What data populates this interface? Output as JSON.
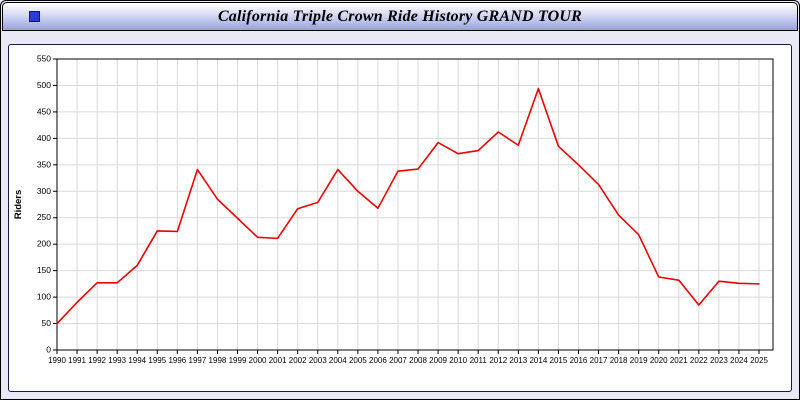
{
  "header": {
    "title": "California Triple Crown Ride History GRAND TOUR",
    "icon": "blue-square-icon"
  },
  "colors": {
    "page_background": "#e9e9f6",
    "titlebar_gradient_top": "#ffffff",
    "titlebar_gradient_bottom": "#97a1dc",
    "plot_background": "#ffffff",
    "grid_line": "#d9d9d9",
    "axis_line": "#000000",
    "series_line": "#ee0000"
  },
  "chart_data": {
    "type": "line",
    "title": "California Triple Crown Ride History GRAND TOUR",
    "xlabel": "",
    "ylabel": "Riders",
    "ylim": [
      0,
      550
    ],
    "ytick_step": 50,
    "grid": true,
    "legend": "none",
    "line_color": "#ee0000",
    "x": [
      1990,
      1991,
      1992,
      1993,
      1994,
      1995,
      1996,
      1997,
      1998,
      1999,
      2000,
      2001,
      2002,
      2003,
      2004,
      2005,
      2006,
      2007,
      2008,
      2009,
      2010,
      2011,
      2012,
      2013,
      2014,
      2015,
      2016,
      2017,
      2018,
      2019,
      2020,
      2021,
      2022,
      2023,
      2024,
      2025
    ],
    "values": [
      50,
      90,
      127,
      127,
      160,
      225,
      224,
      341,
      285,
      249,
      213,
      211,
      267,
      279,
      341,
      300,
      268,
      338,
      342,
      392,
      371,
      377,
      412,
      387,
      494,
      385,
      350,
      313,
      255,
      218,
      138,
      132,
      85,
      130,
      126,
      125
    ]
  }
}
